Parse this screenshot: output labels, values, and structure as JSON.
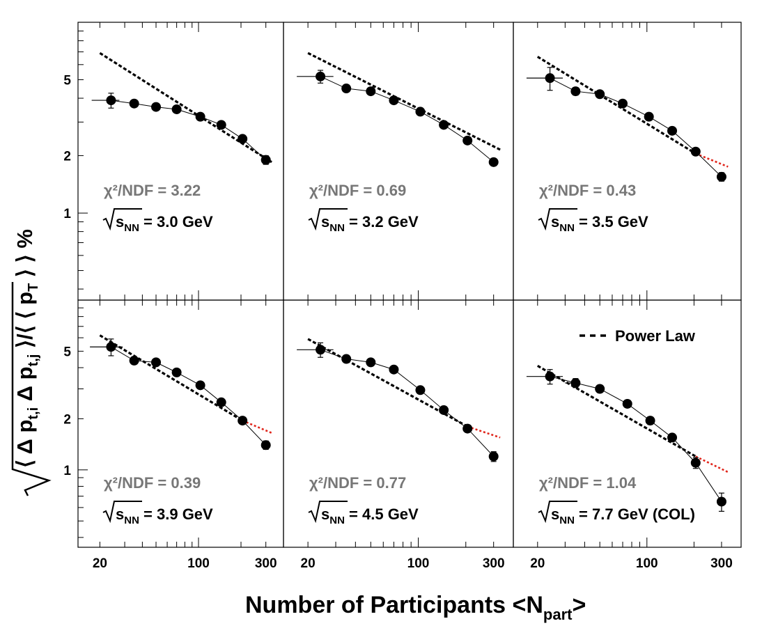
{
  "chart_data": [
    {
      "type": "scatter",
      "chi2": "χ²/NDF = 3.22",
      "energy_prefix": "s",
      "energy_sub": "NN",
      "energy_suffix": " = 3.0 GeV",
      "series": [
        {
          "name": "data",
          "x": [
            24,
            35,
            50,
            70,
            103,
            145,
            205,
            300
          ],
          "y": [
            3.9,
            3.75,
            3.6,
            3.5,
            3.2,
            2.9,
            2.45,
            1.9
          ],
          "xerr_low": [
            6.5,
            0,
            0,
            0,
            6,
            0,
            0,
            0
          ],
          "xerr_high": [
            3.5,
            0,
            0,
            0,
            6,
            0,
            0,
            0
          ],
          "yerr": [
            0.35,
            0.1,
            0.1,
            0.1,
            0.1,
            0.08,
            0.08,
            0.1
          ]
        },
        {
          "name": "Power Law",
          "x": [
            20,
            330
          ],
          "y": [
            6.9,
            1.85
          ]
        }
      ],
      "red_extension": null
    },
    {
      "type": "scatter",
      "chi2": "χ²/NDF = 0.69",
      "energy_prefix": "s",
      "energy_sub": "NN",
      "energy_suffix": " = 3.2 GeV",
      "series": [
        {
          "name": "data",
          "x": [
            24,
            35,
            50,
            70,
            103,
            145,
            205,
            300
          ],
          "y": [
            5.2,
            4.5,
            4.35,
            3.9,
            3.4,
            2.9,
            2.4,
            1.85
          ],
          "xerr_low": [
            7,
            0,
            0,
            0,
            0,
            0,
            0,
            0
          ],
          "xerr_high": [
            5,
            0,
            0,
            0,
            0,
            0,
            0,
            0
          ],
          "yerr": [
            0.4,
            0.1,
            0.1,
            0.1,
            0.1,
            0.08,
            0.08,
            0.08
          ]
        },
        {
          "name": "Power Law",
          "x": [
            20,
            330
          ],
          "y": [
            6.9,
            2.15
          ]
        }
      ],
      "red_extension": null
    },
    {
      "type": "scatter",
      "chi2": "χ²/NDF = 0.43",
      "energy_prefix": "s",
      "energy_sub": "NN",
      "energy_suffix": " = 3.5 GeV",
      "series": [
        {
          "name": "data",
          "x": [
            24,
            35,
            50,
            70,
            103,
            145,
            205,
            300
          ],
          "y": [
            5.1,
            4.35,
            4.2,
            3.75,
            3.2,
            2.7,
            2.1,
            1.55
          ],
          "xerr_low": [
            7,
            0,
            0,
            0,
            0,
            0,
            0,
            0
          ],
          "xerr_high": [
            5,
            0,
            0,
            0,
            0,
            0,
            0,
            0
          ],
          "yerr": [
            0.7,
            0.2,
            0.1,
            0.1,
            0.1,
            0.08,
            0.08,
            0.08
          ]
        },
        {
          "name": "Power Law",
          "x": [
            20,
            205
          ],
          "y": [
            6.6,
            2.05
          ]
        }
      ],
      "red_extension": {
        "x": [
          205,
          330
        ],
        "y": [
          2.05,
          1.75
        ]
      }
    },
    {
      "type": "scatter",
      "chi2": "χ²/NDF = 0.39",
      "energy_prefix": "s",
      "energy_sub": "NN",
      "energy_suffix": " = 3.9 GeV",
      "series": [
        {
          "name": "data",
          "x": [
            24,
            35,
            50,
            70,
            103,
            145,
            205,
            300
          ],
          "y": [
            5.3,
            4.4,
            4.3,
            3.75,
            3.15,
            2.5,
            1.95,
            1.4
          ],
          "xerr_low": [
            7,
            0,
            0,
            0,
            0,
            0,
            0,
            0
          ],
          "xerr_high": [
            5,
            0,
            0,
            0,
            0,
            0,
            0,
            0
          ],
          "yerr": [
            0.6,
            0.2,
            0.1,
            0.1,
            0.1,
            0.08,
            0.08,
            0.08
          ]
        },
        {
          "name": "Power Law",
          "x": [
            20,
            205
          ],
          "y": [
            6.2,
            1.95
          ]
        }
      ],
      "red_extension": {
        "x": [
          205,
          330
        ],
        "y": [
          1.95,
          1.65
        ]
      }
    },
    {
      "type": "scatter",
      "chi2": "χ²/NDF = 0.77",
      "energy_prefix": "s",
      "energy_sub": "NN",
      "energy_suffix": " = 4.5 GeV",
      "series": [
        {
          "name": "data",
          "x": [
            24,
            35,
            50,
            70,
            103,
            145,
            205,
            300
          ],
          "y": [
            5.1,
            4.5,
            4.3,
            3.9,
            2.95,
            2.25,
            1.75,
            1.2
          ],
          "xerr_low": [
            7,
            0,
            0,
            0,
            0,
            0,
            0,
            0
          ],
          "xerr_high": [
            5,
            0,
            0,
            0,
            0,
            0,
            0,
            0
          ],
          "yerr": [
            0.5,
            0.2,
            0.1,
            0.1,
            0.1,
            0.08,
            0.08,
            0.08
          ]
        },
        {
          "name": "Power Law",
          "x": [
            20,
            205
          ],
          "y": [
            5.9,
            1.8
          ]
        }
      ],
      "red_extension": {
        "x": [
          205,
          330
        ],
        "y": [
          1.8,
          1.55
        ]
      }
    },
    {
      "type": "scatter",
      "chi2": "χ²/NDF = 1.04",
      "energy_prefix": "s",
      "energy_sub": "NN",
      "energy_suffix": " = 7.7 GeV (COL)",
      "series": [
        {
          "name": "data",
          "x": [
            24,
            35,
            50,
            75,
            105,
            145,
            205,
            300
          ],
          "y": [
            3.55,
            3.25,
            3.0,
            2.45,
            1.95,
            1.55,
            1.1,
            0.65
          ],
          "xerr_low": [
            7,
            5,
            0,
            0,
            0,
            0,
            0,
            0
          ],
          "xerr_high": [
            5,
            0,
            0,
            0,
            0,
            0,
            0,
            0
          ],
          "yerr": [
            0.35,
            0.2,
            0.15,
            0.12,
            0.1,
            0.08,
            0.08,
            0.08
          ]
        },
        {
          "name": "Power Law",
          "x": [
            20,
            205
          ],
          "y": [
            4.1,
            1.2
          ]
        }
      ],
      "red_extension": {
        "x": [
          205,
          330
        ],
        "y": [
          1.2,
          0.97
        ]
      }
    }
  ],
  "axes": {
    "x_scale": "log",
    "y_scale": "log",
    "xlim": [
      14,
      400
    ],
    "ylim": [
      0.35,
      10
    ],
    "x_tick_labels": [
      "20",
      "100",
      "300"
    ],
    "y_tick_labels": [
      "1",
      "2",
      "5"
    ],
    "xlabel_main": "Number of Participants <N",
    "xlabel_sub": "part",
    "xlabel_end": ">",
    "ylabel_parts": [
      "⟨ Δ p",
      "t,i",
      " Δ p",
      "t,j",
      " ⟩/⟨ ⟨ p",
      "T",
      " ⟩ ⟩ %"
    ]
  },
  "legend": {
    "label": "Power Law",
    "placement": "top-right"
  },
  "colors": {
    "data": "#000000",
    "fit": "#000000",
    "extension": "#e0251b",
    "chi2": "#777777"
  }
}
